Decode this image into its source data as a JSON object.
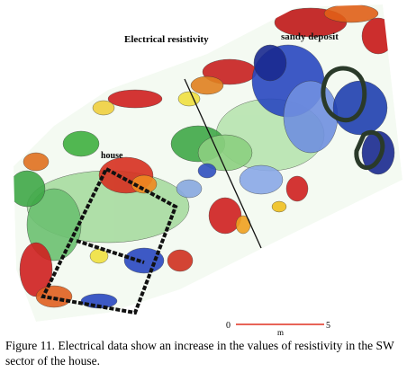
{
  "figure": {
    "labels": {
      "title": "Electrical resistivity",
      "sandy_deposit": "sandy deposit",
      "house": "house"
    },
    "scale": {
      "start": "0",
      "end": "5",
      "unit": "m"
    },
    "caption": "Figure 11. Electrical data show an increase in the values of resistivity in the SW sector of the house."
  }
}
